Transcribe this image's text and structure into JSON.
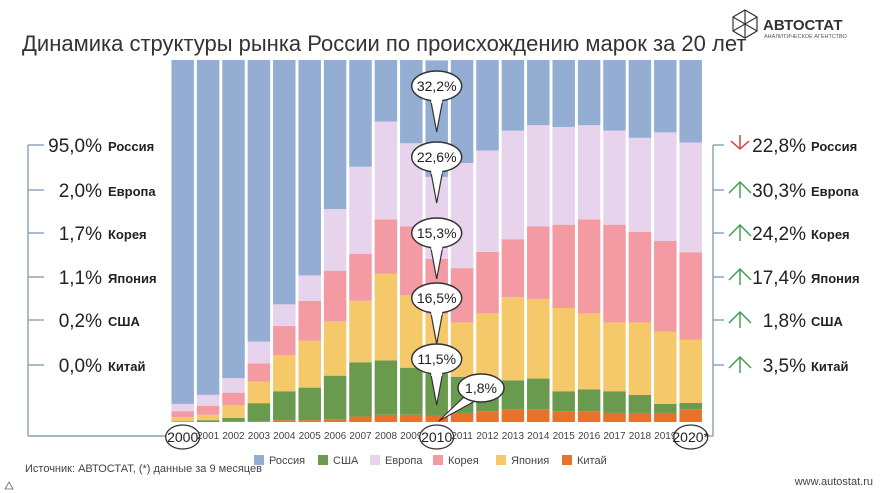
{
  "chart_data": {
    "type": "bar",
    "stacked": "percent",
    "title": "Динамика структуры рынка России по происхождению марок за 20 лет",
    "categories": [
      "2000",
      "2001",
      "2002",
      "2003",
      "2004",
      "2005",
      "2006",
      "2007",
      "2008",
      "2009",
      "2010",
      "2011",
      "2012",
      "2013",
      "2014",
      "2015",
      "2016",
      "2017",
      "2018",
      "2019",
      "2020*"
    ],
    "series": [
      {
        "name": "Китай",
        "color": "#e8722a",
        "values": [
          0.0,
          0.0,
          0.1,
          0.2,
          0.5,
          0.5,
          0.8,
          1.5,
          2.0,
          2.0,
          1.8,
          2.5,
          3.0,
          3.5,
          3.5,
          3.0,
          3.0,
          2.5,
          2.5,
          2.5,
          3.5
        ]
      },
      {
        "name": "США",
        "color": "#6a9a4e",
        "values": [
          0.2,
          0.5,
          1.0,
          5.0,
          8.0,
          9.0,
          12.0,
          15.0,
          15.0,
          13.0,
          11.5,
          10.0,
          8.0,
          8.0,
          8.5,
          5.5,
          6.0,
          6.0,
          5.0,
          2.5,
          1.8
        ]
      },
      {
        "name": "Япония",
        "color": "#f5c86a",
        "values": [
          1.1,
          1.5,
          3.5,
          6.0,
          10.0,
          13.0,
          15.0,
          17.0,
          24.0,
          20.0,
          16.5,
          15.0,
          19.0,
          23.0,
          22.0,
          23.0,
          21.0,
          19.0,
          20.0,
          20.0,
          17.4
        ]
      },
      {
        "name": "Корея",
        "color": "#f39aa2",
        "values": [
          1.7,
          2.5,
          3.5,
          5.0,
          8.0,
          11.0,
          14.0,
          13.0,
          15.0,
          19.0,
          15.3,
          15.0,
          17.0,
          16.0,
          20.0,
          23.0,
          26.0,
          27.0,
          25.0,
          25.0,
          24.2
        ]
      },
      {
        "name": "Европа",
        "color": "#e8d3ec",
        "values": [
          2.0,
          3.0,
          4.0,
          6.0,
          6.0,
          7.0,
          17.0,
          24.0,
          27.0,
          23.0,
          22.6,
          29.0,
          28.0,
          30.0,
          28.0,
          27.0,
          26.0,
          26.0,
          26.0,
          30.0,
          30.3
        ]
      },
      {
        "name": "Россия",
        "color": "#93aed2",
        "values": [
          95.0,
          92.5,
          87.9,
          77.8,
          67.5,
          59.5,
          41.2,
          29.5,
          17.0,
          23.0,
          32.2,
          28.5,
          25.0,
          19.5,
          18.0,
          18.5,
          18.0,
          19.5,
          21.5,
          20.0,
          22.8
        ]
      }
    ],
    "left_summary_year": "2000",
    "left_summary": [
      {
        "pct": "95,0%",
        "label": "Россия"
      },
      {
        "pct": "2,0%",
        "label": "Европа"
      },
      {
        "pct": "1,7%",
        "label": "Корея"
      },
      {
        "pct": "1,1%",
        "label": "Япония"
      },
      {
        "pct": "0,2%",
        "label": "США"
      },
      {
        "pct": "0,0%",
        "label": "Китай"
      }
    ],
    "right_summary_year": "2020*",
    "right_summary": [
      {
        "pct": "22,8%",
        "label": "Россия",
        "trend": "down"
      },
      {
        "pct": "30,3%",
        "label": "Европа",
        "trend": "up"
      },
      {
        "pct": "24,2%",
        "label": "Корея",
        "trend": "up"
      },
      {
        "pct": "17,4%",
        "label": "Япония",
        "trend": "up"
      },
      {
        "pct": "1,8%",
        "label": "США",
        "trend": "up"
      },
      {
        "pct": "3,5%",
        "label": "Китай",
        "trend": "up"
      }
    ],
    "highlight_year": "2010",
    "highlight_labels": [
      "32,2%",
      "22,6%",
      "15,3%",
      "16,5%",
      "11,5%",
      "1,8%"
    ],
    "legend_order": [
      "Россия",
      "США",
      "Европа",
      "Корея",
      "Япония",
      "Китай"
    ],
    "legend_position": "bottom",
    "ylim": [
      0,
      100
    ]
  },
  "brand": {
    "name": "АВТОСТАТ",
    "tagline": "АНАЛИТИЧЕСКОЕ АГЕНТСТВО"
  },
  "footer": {
    "source": "Источник: АВТОСТАТ, (*) данные за 9 месяцев",
    "website": "www.autostat.ru"
  },
  "colors": {
    "up": "#3a9a4a",
    "down": "#d9342b",
    "line": "#8aa0b4"
  }
}
